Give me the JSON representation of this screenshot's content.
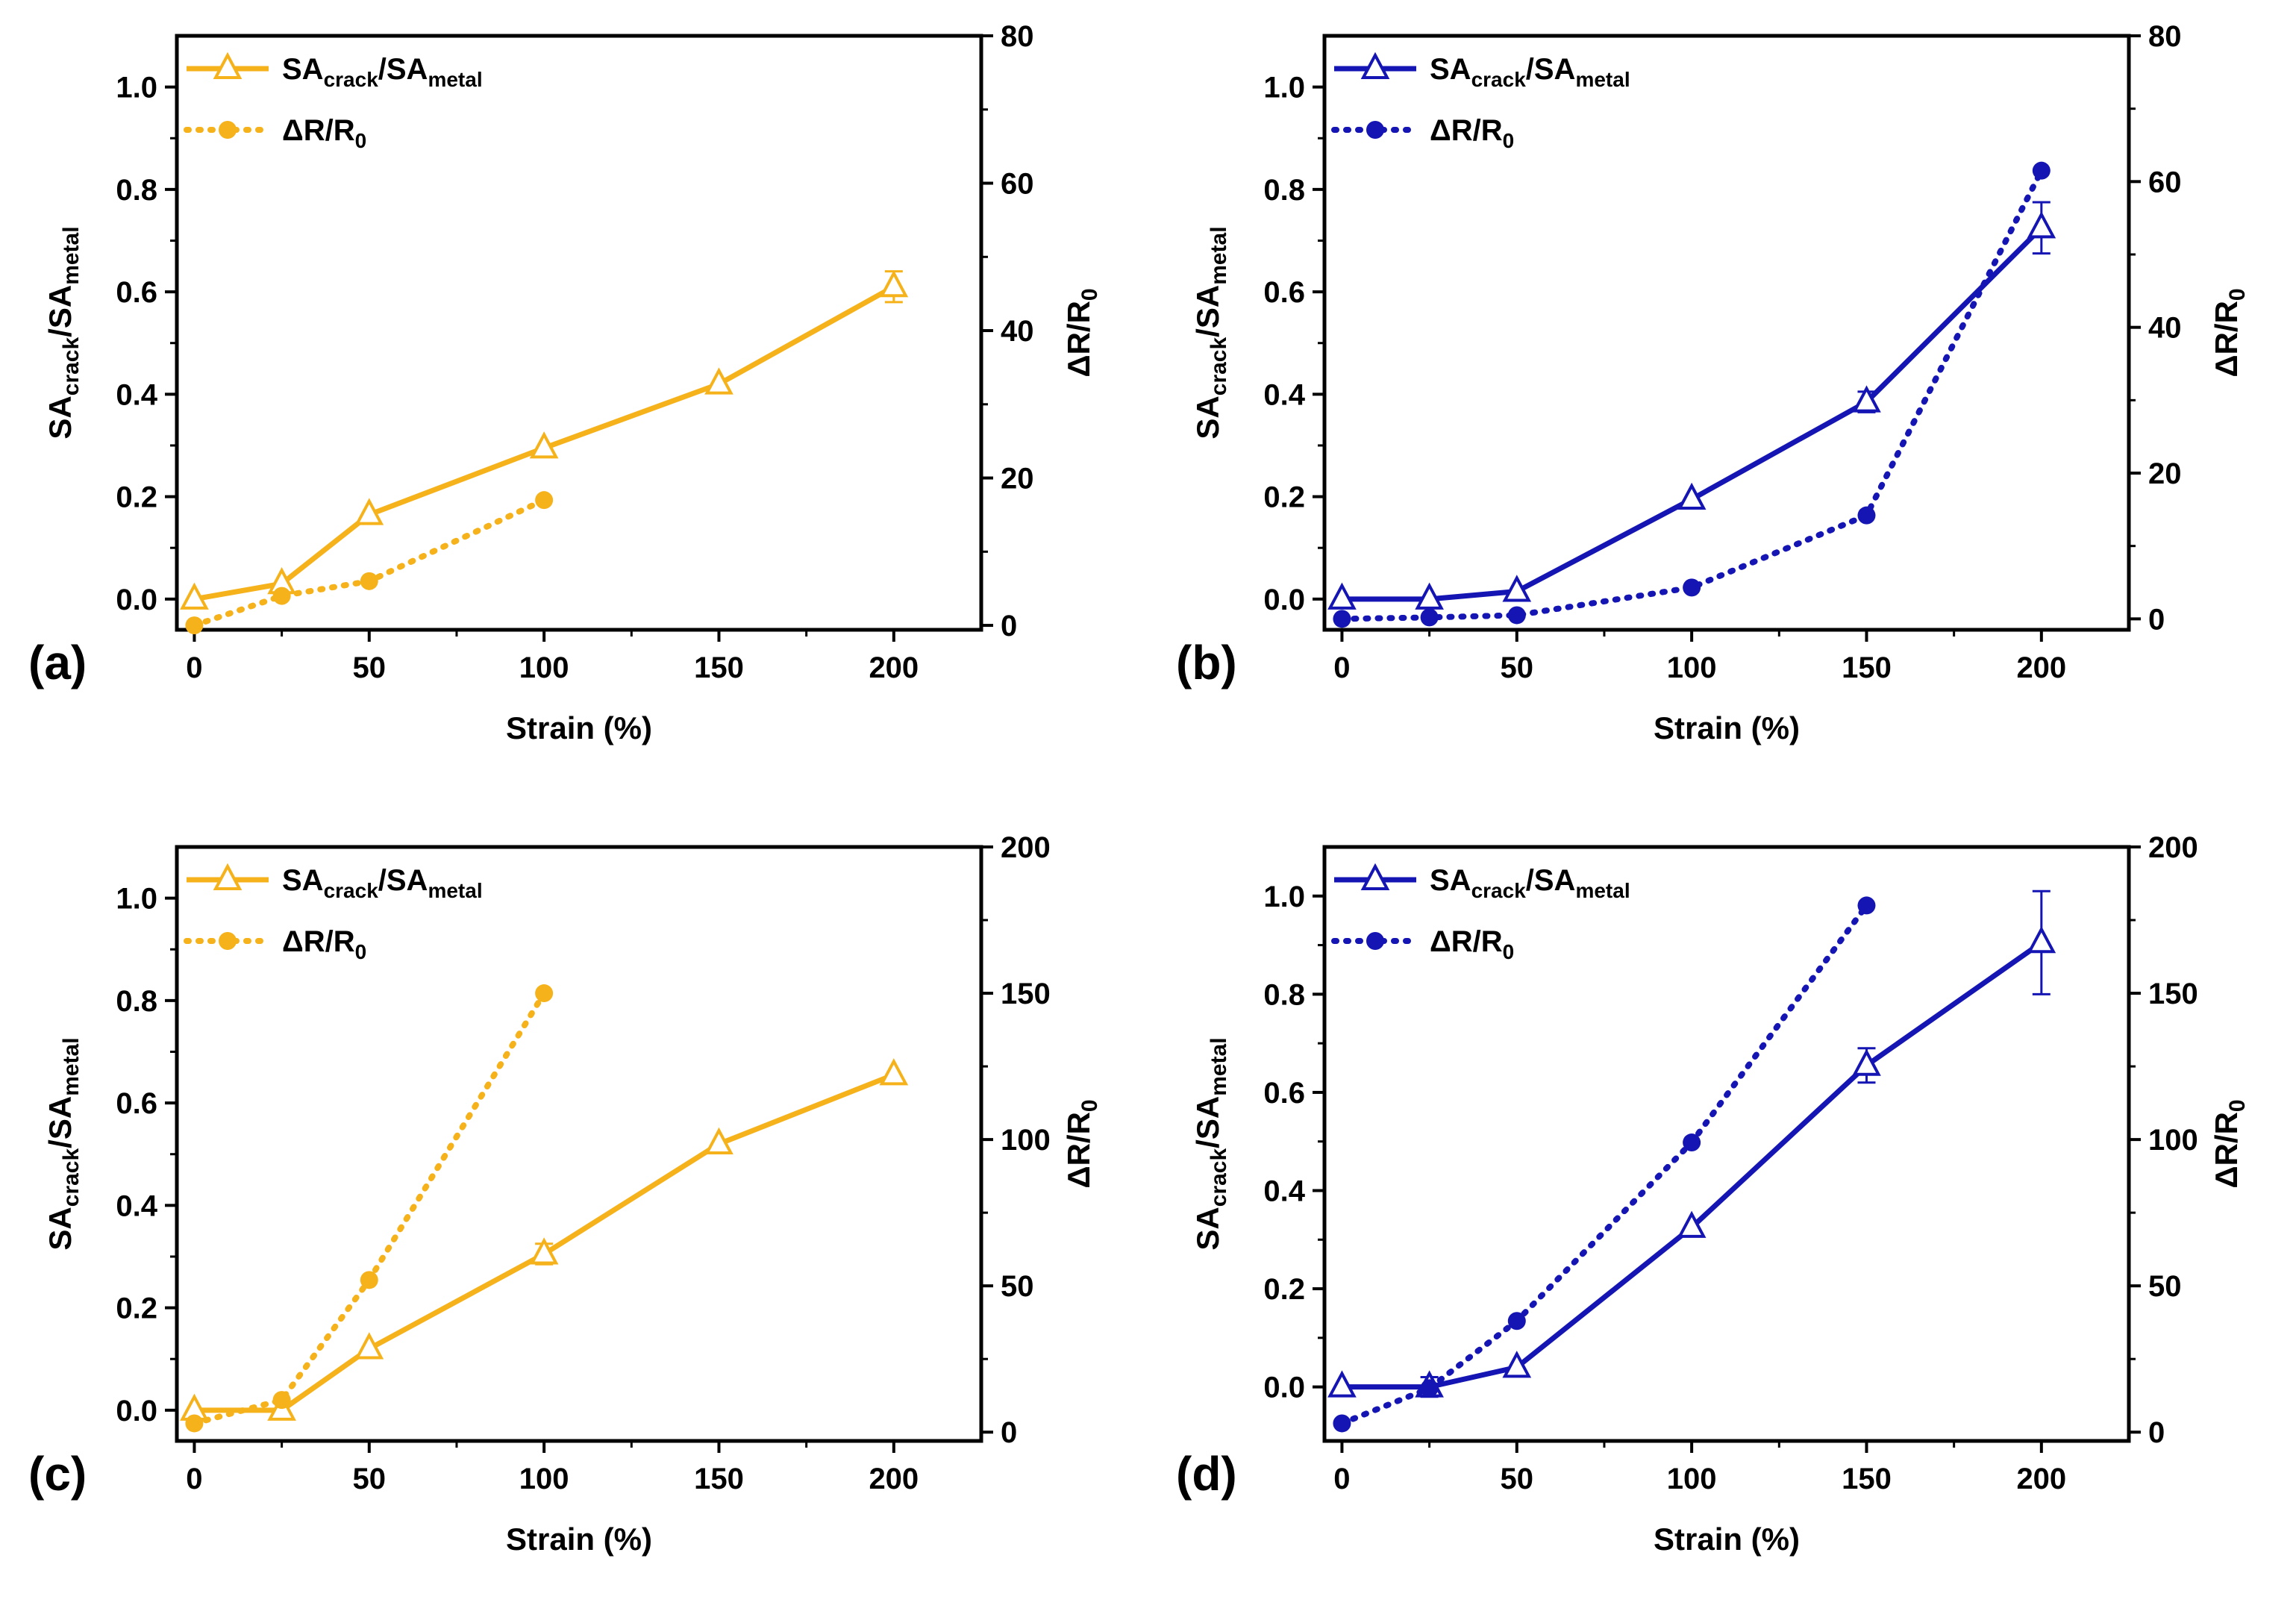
{
  "chart_data": [
    {
      "id": "a",
      "type": "line",
      "panel_label": "(a)",
      "xlabel": "Strain (%)",
      "ylabel_left": {
        "base": "SA",
        "sub1": "crack",
        "mid": "/SA",
        "sub2": "metal"
      },
      "ylabel_right": {
        "base": "ΔR/R",
        "sub": "0"
      },
      "xlim": [
        -5,
        225
      ],
      "ylim_left": [
        -0.06,
        1.1
      ],
      "ylim_right": [
        -0.6,
        80
      ],
      "xticks": [
        0,
        50,
        100,
        150,
        200
      ],
      "yticks_left": [
        0.0,
        0.2,
        0.4,
        0.6,
        0.8,
        1.0
      ],
      "yticks_left_labels": [
        "0.0",
        "0.2",
        "0.4",
        "0.6",
        "0.8",
        "1.0"
      ],
      "yticks_right": [
        0,
        20,
        40,
        60,
        80
      ],
      "color": "#F5B21B",
      "legend_location": "top-left",
      "series": [
        {
          "name": "SAcrack/SAmetal",
          "legend": {
            "base": "SA",
            "sub1": "crack",
            "mid": "/SA",
            "sub2": "metal"
          },
          "axis": "left",
          "style": "solid",
          "marker": "open-triangle",
          "x": [
            0,
            25,
            50,
            100,
            150,
            200
          ],
          "y": [
            0.0,
            0.03,
            0.165,
            0.295,
            0.42,
            0.61
          ],
          "err": [
            0,
            0,
            0,
            0,
            0,
            0.03
          ]
        },
        {
          "name": "ΔR/R0",
          "legend": {
            "base": "ΔR/R",
            "sub": "0"
          },
          "axis": "right",
          "style": "dotted",
          "marker": "filled-circle",
          "x": [
            0,
            25,
            50,
            100
          ],
          "y": [
            0,
            4,
            6,
            17
          ]
        }
      ]
    },
    {
      "id": "b",
      "type": "line",
      "panel_label": "(b)",
      "xlabel": "Strain (%)",
      "ylabel_left": {
        "base": "SA",
        "sub1": "crack",
        "mid": "/SA",
        "sub2": "metal"
      },
      "ylabel_right": {
        "base": "ΔR/R",
        "sub": "0"
      },
      "xlim": [
        -5,
        225
      ],
      "ylim_left": [
        -0.06,
        1.1
      ],
      "ylim_right": [
        -1.5,
        80
      ],
      "xticks": [
        0,
        50,
        100,
        150,
        200
      ],
      "yticks_left": [
        0.0,
        0.2,
        0.4,
        0.6,
        0.8,
        1.0
      ],
      "yticks_left_labels": [
        "0.0",
        "0.2",
        "0.4",
        "0.6",
        "0.8",
        "1.0"
      ],
      "yticks_right": [
        0,
        20,
        40,
        60,
        80
      ],
      "color": "#1515B4",
      "legend_location": "top-left",
      "series": [
        {
          "name": "SAcrack/SAmetal",
          "legend": {
            "base": "SA",
            "sub1": "crack",
            "mid": "/SA",
            "sub2": "metal"
          },
          "axis": "left",
          "style": "solid",
          "marker": "open-triangle",
          "x": [
            0,
            25,
            50,
            100,
            150,
            200
          ],
          "y": [
            0.0,
            0.0,
            0.015,
            0.195,
            0.385,
            0.725
          ],
          "err": [
            0,
            0,
            0,
            0,
            0.02,
            0.05
          ]
        },
        {
          "name": "ΔR/R0",
          "legend": {
            "base": "ΔR/R",
            "sub": "0"
          },
          "axis": "right",
          "style": "dotted",
          "marker": "filled-circle",
          "x": [
            0,
            25,
            50,
            100,
            150,
            200
          ],
          "y": [
            0,
            0.2,
            0.5,
            4.3,
            14.2,
            61.5
          ]
        }
      ]
    },
    {
      "id": "c",
      "type": "line",
      "panel_label": "(c)",
      "xlabel": "Strain (%)",
      "ylabel_left": {
        "base": "SA",
        "sub1": "crack",
        "mid": "/SA",
        "sub2": "metal"
      },
      "ylabel_right": {
        "base": "ΔR/R",
        "sub": "0"
      },
      "xlim": [
        -5,
        225
      ],
      "ylim_left": [
        -0.06,
        1.1
      ],
      "ylim_right": [
        -3,
        200
      ],
      "xticks": [
        0,
        50,
        100,
        150,
        200
      ],
      "yticks_left": [
        0.0,
        0.2,
        0.4,
        0.6,
        0.8,
        1.0
      ],
      "yticks_left_labels": [
        "0.0",
        "0.2",
        "0.4",
        "0.6",
        "0.8",
        "1.0"
      ],
      "yticks_right": [
        0,
        50,
        100,
        150,
        200
      ],
      "color": "#F5B21B",
      "legend_location": "top-left",
      "series": [
        {
          "name": "SAcrack/SAmetal",
          "legend": {
            "base": "SA",
            "sub1": "crack",
            "mid": "/SA",
            "sub2": "metal"
          },
          "axis": "left",
          "style": "solid",
          "marker": "open-triangle",
          "x": [
            0,
            25,
            50,
            100,
            150,
            200
          ],
          "y": [
            0.0,
            0.0,
            0.12,
            0.305,
            0.52,
            0.655
          ],
          "err": [
            0,
            0,
            0,
            0.02,
            0,
            0
          ]
        },
        {
          "name": "ΔR/R0",
          "legend": {
            "base": "ΔR/R",
            "sub": "0"
          },
          "axis": "right",
          "style": "dotted",
          "marker": "filled-circle",
          "x": [
            0,
            25,
            50,
            100
          ],
          "y": [
            3,
            11,
            52,
            150
          ]
        }
      ]
    },
    {
      "id": "d",
      "type": "line",
      "panel_label": "(d)",
      "xlabel": "Strain (%)",
      "ylabel_left": {
        "base": "SA",
        "sub1": "crack",
        "mid": "/SA",
        "sub2": "metal"
      },
      "ylabel_right": {
        "base": "ΔR/R",
        "sub": "0"
      },
      "xlim": [
        -5,
        225
      ],
      "ylim_left": [
        -0.11,
        1.1
      ],
      "ylim_right": [
        -3,
        200
      ],
      "xticks": [
        0,
        50,
        100,
        150,
        200
      ],
      "yticks_left": [
        0.0,
        0.2,
        0.4,
        0.6,
        0.8,
        1.0
      ],
      "yticks_left_labels": [
        "0.0",
        "0.2",
        "0.4",
        "0.6",
        "0.8",
        "1.0"
      ],
      "yticks_right": [
        0,
        50,
        100,
        150,
        200
      ],
      "color": "#1515B4",
      "legend_location": "top-left",
      "series": [
        {
          "name": "SAcrack/SAmetal",
          "legend": {
            "base": "SA",
            "sub1": "crack",
            "mid": "/SA",
            "sub2": "metal"
          },
          "axis": "left",
          "style": "solid",
          "marker": "open-triangle",
          "x": [
            0,
            25,
            50,
            100,
            150,
            200
          ],
          "y": [
            0.0,
            0.0,
            0.04,
            0.325,
            0.655,
            0.905
          ],
          "err": [
            0,
            0.02,
            0,
            0,
            0.035,
            0.105
          ]
        },
        {
          "name": "ΔR/R0",
          "legend": {
            "base": "ΔR/R",
            "sub": "0"
          },
          "axis": "right",
          "style": "dotted",
          "marker": "filled-circle",
          "x": [
            0,
            25,
            50,
            100,
            150
          ],
          "y": [
            3,
            15,
            38,
            99,
            180
          ]
        }
      ]
    }
  ]
}
